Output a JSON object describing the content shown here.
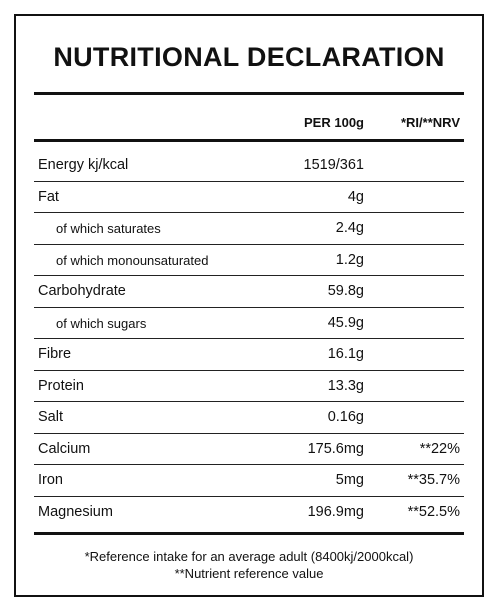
{
  "title": "NUTRITIONAL DECLARATION",
  "header": {
    "col_per100": "PER 100g",
    "col_ri": "*RI/**NRV"
  },
  "rows": [
    {
      "label": "Energy kj/kcal",
      "value": "1519/361",
      "ri": "",
      "sub": false
    },
    {
      "label": "Fat",
      "value": "4g",
      "ri": "",
      "sub": false
    },
    {
      "label": "of which saturates",
      "value": "2.4g",
      "ri": "",
      "sub": true
    },
    {
      "label": "of which monounsaturated",
      "value": "1.2g",
      "ri": "",
      "sub": true
    },
    {
      "label": "Carbohydrate",
      "value": "59.8g",
      "ri": "",
      "sub": false
    },
    {
      "label": "of which sugars",
      "value": "45.9g",
      "ri": "",
      "sub": true
    },
    {
      "label": "Fibre",
      "value": "16.1g",
      "ri": "",
      "sub": false
    },
    {
      "label": "Protein",
      "value": "13.3g",
      "ri": "",
      "sub": false
    },
    {
      "label": "Salt",
      "value": "0.16g",
      "ri": "",
      "sub": false
    },
    {
      "label": "Calcium",
      "value": "175.6mg",
      "ri": "**22%",
      "sub": false
    },
    {
      "label": "Iron",
      "value": "5mg",
      "ri": "**35.7%",
      "sub": false
    },
    {
      "label": "Magnesium",
      "value": "196.9mg",
      "ri": "**52.5%",
      "sub": false
    }
  ],
  "footnotes": {
    "ri": "*Reference intake for an average adult (8400kj/2000kcal)",
    "nrv": "**Nutrient reference value"
  }
}
